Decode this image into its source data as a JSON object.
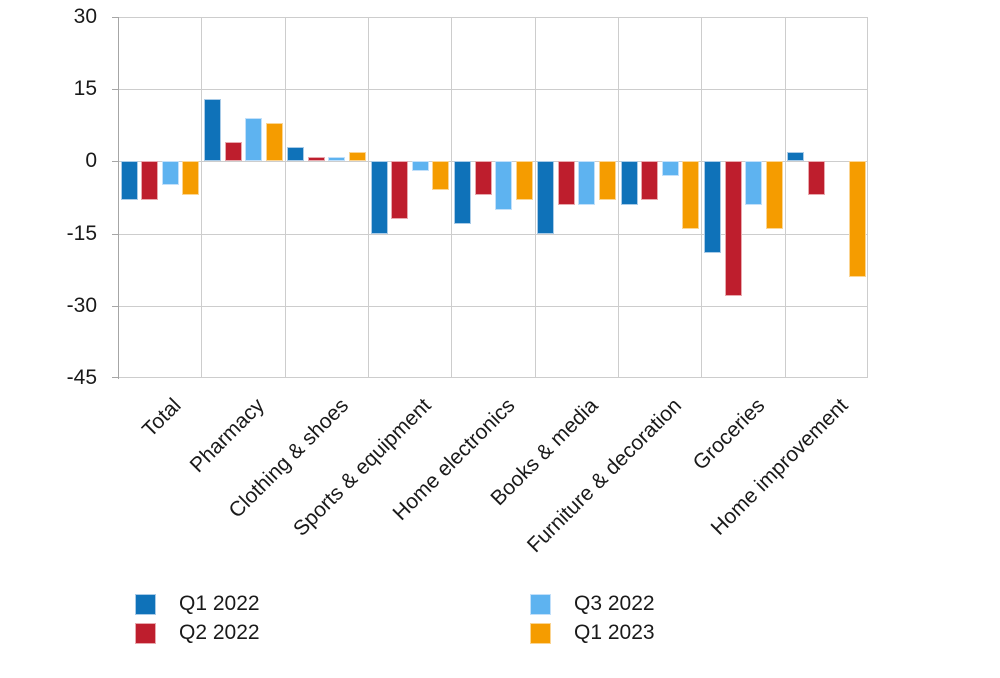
{
  "chart_data": {
    "type": "bar",
    "title": "",
    "xlabel": "",
    "ylabel": "",
    "categories": [
      "Total",
      "Pharmacy",
      "Clothing & shoes",
      "Sports & equipment",
      "Home electronics",
      "Books & media",
      "Furniture & decoration",
      "Groceries",
      "Home improvement"
    ],
    "series": [
      {
        "name": "Q1 2022",
        "color": "#0F72B9",
        "border": "#A9CBE7",
        "values": [
          -8,
          13,
          3,
          -15,
          -13,
          -15,
          -9,
          -19,
          2
        ]
      },
      {
        "name": "Q2 2022",
        "color": "#BE1E2D",
        "border": "#E8A9AE",
        "values": [
          -8,
          4,
          1,
          -12,
          -7,
          -9,
          -8,
          -28,
          -7
        ]
      },
      {
        "name": "Q3 2022",
        "color": "#5EB3F0",
        "border": "#C2E0FA",
        "values": [
          -5,
          9,
          1,
          -2,
          -10,
          -9,
          -3,
          -9,
          0
        ]
      },
      {
        "name": "Q1 2023",
        "color": "#F59C00",
        "border": "#FBD593",
        "values": [
          -7,
          8,
          2,
          -6,
          -8,
          -8,
          -14,
          -14,
          -24
        ]
      }
    ],
    "ylim": [
      -45,
      30
    ],
    "yticks": [
      30,
      15,
      0,
      -15,
      -30,
      -45
    ],
    "grid": true,
    "legend_position": "bottom",
    "legend_columns": [
      [
        "Q1 2022",
        "Q2 2022"
      ],
      [
        "Q3 2022",
        "Q1 2023"
      ]
    ],
    "grid_color": "#CDCDCD",
    "axis_color": "#A6A6A6",
    "text_color": "#1A1A1A"
  }
}
